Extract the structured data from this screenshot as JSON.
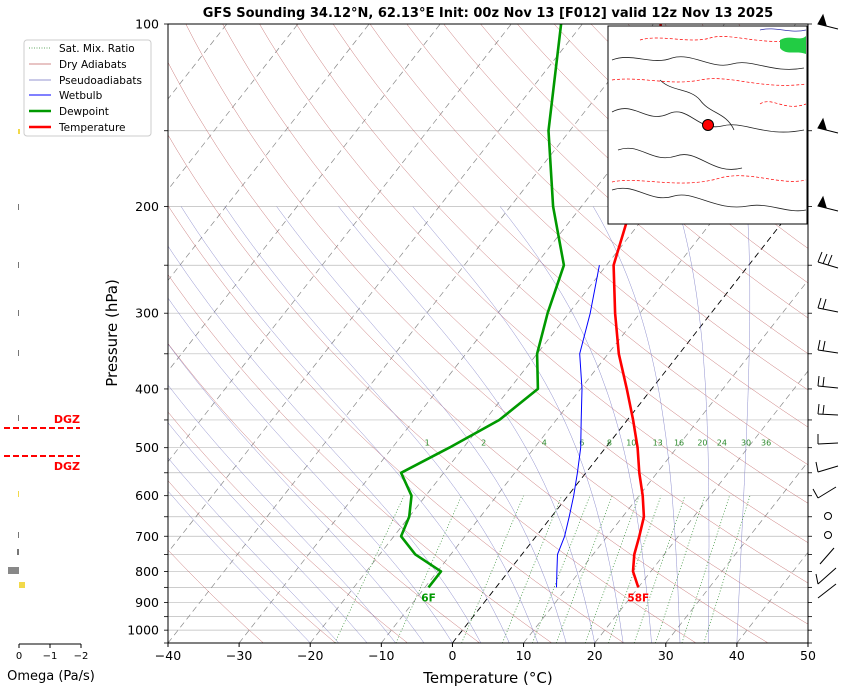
{
  "chart_data": {
    "type": "line",
    "title": "GFS Sounding 34.12°N, 62.13°E Init: 00z Nov 13 [F012] valid 12z Nov 13 2025",
    "xlabel": "Temperature (°C)",
    "ylabel": "Pressure (hPa)",
    "xlim": [
      -40,
      50
    ],
    "ylim": [
      1050,
      100
    ],
    "y_scale": "log",
    "grid": true,
    "legend_position": "top-left",
    "x_ticks": [
      -40,
      -30,
      -20,
      -10,
      0,
      10,
      20,
      30,
      40,
      50
    ],
    "x_tick_labels": [
      "−40",
      "−30",
      "−20",
      "−10",
      "0",
      "10",
      "20",
      "30",
      "40",
      "50"
    ],
    "y_ticks": [
      100,
      200,
      300,
      400,
      500,
      600,
      700,
      800,
      900,
      1000
    ],
    "y_tick_labels": [
      "100",
      "200",
      "300",
      "400",
      "500",
      "600",
      "700",
      "800",
      "900",
      "1000"
    ],
    "legend": [
      {
        "label": "Sat. Mix. Ratio",
        "color": "#2e8b2e",
        "style": "dotted"
      },
      {
        "label": "Dry Adiabats",
        "color": "#c06060",
        "style": "solid"
      },
      {
        "label": "Pseudoadiabats",
        "color": "#7070c0",
        "style": "solid"
      },
      {
        "label": "Wetbulb",
        "color": "#0000ff",
        "style": "solid"
      },
      {
        "label": "Dewpoint",
        "color": "#009900",
        "style": "solid-thick"
      },
      {
        "label": "Temperature",
        "color": "#ff0000",
        "style": "solid-thick"
      }
    ],
    "series": [
      {
        "name": "Temperature",
        "color": "#ff0000",
        "points": [
          [
            850,
            20.0
          ],
          [
            800,
            17.5
          ],
          [
            750,
            15.8
          ],
          [
            700,
            14.5
          ],
          [
            650,
            13.0
          ],
          [
            600,
            10.5
          ],
          [
            550,
            7.5
          ],
          [
            500,
            4.5
          ],
          [
            450,
            0.8
          ],
          [
            400,
            -3.5
          ],
          [
            350,
            -8.5
          ],
          [
            300,
            -13.5
          ],
          [
            250,
            -19.0
          ],
          [
            200,
            -23.0
          ],
          [
            150,
            -27.0
          ],
          [
            100,
            -39.0
          ]
        ]
      },
      {
        "name": "Dewpoint",
        "color": "#009900",
        "points": [
          [
            850,
            -9.5
          ],
          [
            800,
            -9.5
          ],
          [
            750,
            -15.0
          ],
          [
            700,
            -19.0
          ],
          [
            650,
            -20.0
          ],
          [
            600,
            -22.0
          ],
          [
            550,
            -26.0
          ],
          [
            500,
            -22.0
          ],
          [
            450,
            -18.0
          ],
          [
            400,
            -16.0
          ],
          [
            350,
            -20.0
          ],
          [
            300,
            -23.0
          ],
          [
            250,
            -26.0
          ],
          [
            200,
            -34.0
          ],
          [
            150,
            -43.0
          ],
          [
            100,
            -53.0
          ]
        ]
      },
      {
        "name": "Wetbulb",
        "color": "#0000ff",
        "points": [
          [
            850,
            8.5
          ],
          [
            800,
            6.8
          ],
          [
            750,
            5.0
          ],
          [
            700,
            4.0
          ],
          [
            650,
            2.5
          ],
          [
            600,
            0.8
          ],
          [
            550,
            -1.2
          ],
          [
            500,
            -3.5
          ],
          [
            450,
            -6.5
          ],
          [
            400,
            -9.8
          ],
          [
            350,
            -14.0
          ],
          [
            300,
            -17.0
          ],
          [
            250,
            -21.0
          ]
        ]
      }
    ],
    "surface_labels": [
      {
        "text": "58F",
        "color": "#ff0000"
      },
      {
        "text": "6F",
        "color": "#009900"
      }
    ],
    "mixing_ratio_labels": [
      "1",
      "2",
      "4",
      "6",
      "8",
      "10",
      "13",
      "16",
      "20",
      "24",
      "30",
      "36"
    ],
    "mixing_ratio_values": [
      1,
      2,
      4,
      6,
      8,
      10,
      13,
      16,
      20,
      24,
      30,
      36
    ],
    "dgz": {
      "label_top": "DGZ",
      "label_bottom": "DGZ",
      "color": "#ff0000"
    },
    "omega": {
      "xlabel": "Omega (Pa/s)",
      "x_tick_labels": [
        "0",
        "−1",
        "−2"
      ]
    },
    "colors": {
      "isotherm": "#888888",
      "isobar": "#bbbbbb",
      "dry_adiabat": "#c06060",
      "moist_adiabat": "#7070c0",
      "mix_ratio": "#2e8b2e"
    }
  }
}
